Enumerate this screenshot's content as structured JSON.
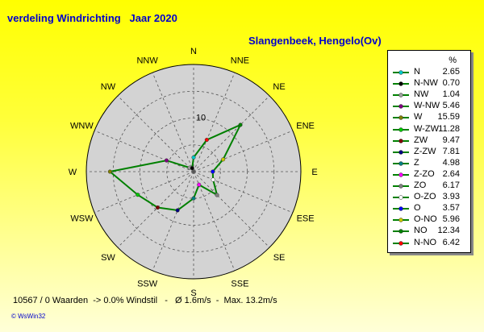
{
  "title": "verdeling Windrichting   Jaar 2020",
  "station": "Slangenbeek, Hengelo(Ov)",
  "footer": "10567 / 0 Waarden  -> 0.0% Windstil   -   Ø 1.6m/s  -  Max. 13.2m/s",
  "credit": "© WsWin32",
  "colors": {
    "background_top": "#ffff00",
    "plot_fill": "#d3d3d3",
    "series_line": "#008000",
    "title_text": "#0000cc"
  },
  "chart_data": {
    "type": "radar",
    "unit": "%",
    "radial_tick_labels": [
      "10"
    ],
    "r_max": 20,
    "radial_gridlines": [
      5,
      10,
      15,
      20
    ],
    "start": "N at top, clockwise",
    "grid": "dashed",
    "legend_position": "right",
    "directions": [
      "N",
      "NNE",
      "NE",
      "ENE",
      "E",
      "ESE",
      "SE",
      "SSE",
      "S",
      "SSW",
      "SW",
      "WSW",
      "W",
      "WNW",
      "NW",
      "NNW"
    ],
    "series": [
      {
        "label": "N",
        "marker_dir": "N",
        "value": 2.65,
        "color": "#00c8c8"
      },
      {
        "label": "N-NW",
        "marker_dir": "NNW",
        "value": 0.7,
        "color": "#000000"
      },
      {
        "label": "NW",
        "marker_dir": "NW",
        "value": 1.04,
        "color": "#a0a0a0"
      },
      {
        "label": "W-NW",
        "marker_dir": "WNW",
        "value": 5.46,
        "color": "#800080"
      },
      {
        "label": "W",
        "marker_dir": "W",
        "value": 15.59,
        "color": "#808000"
      },
      {
        "label": "W-ZW",
        "marker_dir": "WSW",
        "value": 11.28,
        "color": "#00c800"
      },
      {
        "label": "ZW",
        "marker_dir": "SW",
        "value": 9.47,
        "color": "#800000"
      },
      {
        "label": "Z-ZW",
        "marker_dir": "SSW",
        "value": 7.81,
        "color": "#000080"
      },
      {
        "label": "Z",
        "marker_dir": "S",
        "value": 4.98,
        "color": "#008080"
      },
      {
        "label": "Z-ZO",
        "marker_dir": "SSE",
        "value": 2.64,
        "color": "#ff00ff"
      },
      {
        "label": "ZO",
        "marker_dir": "SE",
        "value": 6.17,
        "color": "#808080"
      },
      {
        "label": "O-ZO",
        "marker_dir": "ESE",
        "value": 3.93,
        "color": "#ffffff"
      },
      {
        "label": "O",
        "marker_dir": "E",
        "value": 3.57,
        "color": "#0000ff"
      },
      {
        "label": "O-NO",
        "marker_dir": "ENE",
        "value": 5.96,
        "color": "#c8c800"
      },
      {
        "label": "NO",
        "marker_dir": "NE",
        "value": 12.34,
        "color": "#008000"
      },
      {
        "label": "N-NO",
        "marker_dir": "NNE",
        "value": 6.42,
        "color": "#ff0000"
      }
    ]
  },
  "legend": {
    "header": "%"
  }
}
